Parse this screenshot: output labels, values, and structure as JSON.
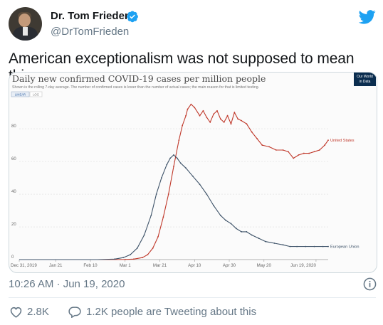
{
  "author": {
    "name": "Dr. Tom Frieden",
    "handle": "@DrTomFrieden",
    "verified": true
  },
  "tweet": {
    "text": "American exceptionalism was not supposed to mean this.",
    "timestamp": "10:26 AM · Jun 19, 2020",
    "likes": "2.8K",
    "replies": "1.2K people are Tweeting about this"
  },
  "colors": {
    "twitter_blue": "#1da1f2",
    "us_series": "#c0392b",
    "eu_series": "#3d5268",
    "gray_text": "#657786"
  },
  "icons": [
    "verified-badge-icon",
    "twitter-bird-icon",
    "info-icon",
    "heart-icon",
    "reply-bubble-icon"
  ],
  "chart_data": {
    "type": "line",
    "title": "Daily new confirmed COVID-19 cases per million people",
    "subtitle": "Shown is the rolling 7-day average. The number of confirmed cases is lower than the number of actual cases; the main reason for that is limited testing.",
    "logo_text": [
      "Our World",
      "in Data"
    ],
    "toggles": [
      "LINEAR",
      "LOG"
    ],
    "xlabel": "",
    "ylabel": "",
    "x_ticks": [
      "Dec 31, 2019",
      "Jan 21",
      "Feb 10",
      "Mar 1",
      "Mar 21",
      "Apr 10",
      "Apr 30",
      "May 20",
      "Jun 19, 2020"
    ],
    "x_tick_day_index": [
      0,
      21,
      41,
      61,
      81,
      101,
      121,
      141,
      171
    ],
    "y_ticks": [
      0,
      20,
      40,
      60,
      80
    ],
    "ylim": [
      0,
      97
    ],
    "grid": true,
    "series": [
      {
        "name": "United States",
        "color": "#c0392b",
        "points": [
          [
            0,
            0
          ],
          [
            55,
            0
          ],
          [
            61,
            0.1
          ],
          [
            66,
            0.3
          ],
          [
            71,
            1.2
          ],
          [
            74,
            3
          ],
          [
            77,
            7
          ],
          [
            80,
            14
          ],
          [
            83,
            26
          ],
          [
            86,
            40
          ],
          [
            89,
            57
          ],
          [
            92,
            73
          ],
          [
            94,
            82
          ],
          [
            96,
            88
          ],
          [
            97,
            92
          ],
          [
            99,
            95
          ],
          [
            101,
            93
          ],
          [
            104,
            88
          ],
          [
            106,
            91
          ],
          [
            108,
            87
          ],
          [
            110,
            84
          ],
          [
            112,
            89
          ],
          [
            114,
            91
          ],
          [
            116,
            86
          ],
          [
            118,
            84
          ],
          [
            120,
            88
          ],
          [
            122,
            83
          ],
          [
            124,
            90
          ],
          [
            126,
            86
          ],
          [
            128,
            85
          ],
          [
            131,
            83
          ],
          [
            134,
            78
          ],
          [
            137,
            74
          ],
          [
            140,
            70
          ],
          [
            144,
            69
          ],
          [
            148,
            67
          ],
          [
            152,
            67
          ],
          [
            155,
            66
          ],
          [
            158,
            62
          ],
          [
            161,
            64
          ],
          [
            164,
            65
          ],
          [
            167,
            65
          ],
          [
            170,
            66
          ],
          [
            173,
            67
          ],
          [
            176,
            70
          ],
          [
            178,
            73
          ]
        ]
      },
      {
        "name": "European Union",
        "color": "#3d5268",
        "points": [
          [
            0,
            0
          ],
          [
            45,
            0
          ],
          [
            55,
            0.3
          ],
          [
            60,
            1.2
          ],
          [
            64,
            3
          ],
          [
            68,
            7
          ],
          [
            72,
            15
          ],
          [
            76,
            27
          ],
          [
            79,
            40
          ],
          [
            82,
            50
          ],
          [
            85,
            58
          ],
          [
            87,
            62
          ],
          [
            89,
            64
          ],
          [
            91,
            62
          ],
          [
            93,
            59
          ],
          [
            96,
            56
          ],
          [
            100,
            51
          ],
          [
            104,
            46
          ],
          [
            108,
            40
          ],
          [
            112,
            33
          ],
          [
            116,
            27
          ],
          [
            119,
            24
          ],
          [
            122,
            22
          ],
          [
            125,
            19
          ],
          [
            128,
            17
          ],
          [
            131,
            17
          ],
          [
            134,
            15
          ],
          [
            138,
            13
          ],
          [
            142,
            11
          ],
          [
            147,
            10
          ],
          [
            152,
            9
          ],
          [
            156,
            8
          ],
          [
            160,
            8
          ],
          [
            165,
            8
          ],
          [
            170,
            8
          ],
          [
            175,
            8
          ],
          [
            178,
            8
          ]
        ]
      }
    ]
  }
}
